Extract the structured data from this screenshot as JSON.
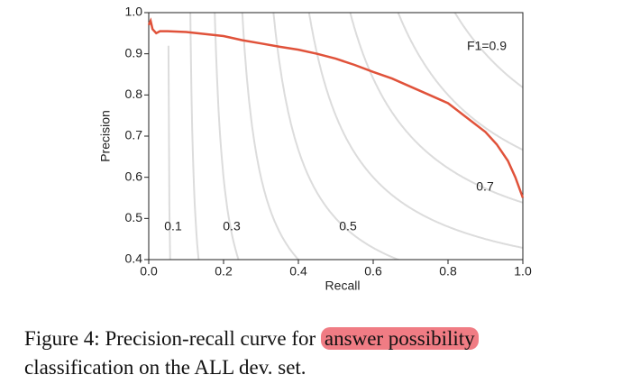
{
  "chart_data": {
    "type": "line",
    "xlabel": "Recall",
    "ylabel": "Precision",
    "xlim": [
      0,
      1
    ],
    "ylim": [
      0.4,
      1
    ],
    "xticks": [
      {
        "value": 0,
        "label": "0.0"
      },
      {
        "value": 0.2,
        "label": "0.2"
      },
      {
        "value": 0.4,
        "label": "0.4"
      },
      {
        "value": 0.6,
        "label": "0.6"
      },
      {
        "value": 0.8,
        "label": "0.8"
      },
      {
        "value": 1,
        "label": "1.0"
      }
    ],
    "yticks": [
      {
        "value": 0.4,
        "label": "0.4"
      },
      {
        "value": 0.5,
        "label": "0.5"
      },
      {
        "value": 0.6,
        "label": "0.6"
      },
      {
        "value": 0.7,
        "label": "0.7"
      },
      {
        "value": 0.8,
        "label": "0.8"
      },
      {
        "value": 0.9,
        "label": "0.9"
      },
      {
        "value": 1,
        "label": "1.0"
      }
    ],
    "iso_f1": [
      0.1,
      0.2,
      0.3,
      0.4,
      0.5,
      0.6,
      0.7,
      0.8,
      0.9
    ],
    "iso_f1_color": "#dcdcdc",
    "iso_f1_labels": [
      {
        "value": 0.1,
        "label": "0.1"
      },
      {
        "value": 0.3,
        "label": "0.3"
      },
      {
        "value": 0.5,
        "label": "0.5"
      },
      {
        "value": 0.7,
        "label": "0.7"
      },
      {
        "value": 0.9,
        "label": "F1=0.9"
      }
    ],
    "series": [
      {
        "color": "#e0523a",
        "x": [
          0,
          0.005,
          0.01,
          0.02,
          0.03,
          0.05,
          0.1,
          0.15,
          0.2,
          0.25,
          0.3,
          0.35,
          0.4,
          0.45,
          0.5,
          0.55,
          0.6,
          0.65,
          0.7,
          0.75,
          0.8,
          0.85,
          0.9,
          0.93,
          0.96,
          0.98,
          1
        ],
        "values": [
          0.97,
          0.98,
          0.96,
          0.95,
          0.955,
          0.955,
          0.953,
          0.948,
          0.943,
          0.933,
          0.925,
          0.917,
          0.91,
          0.9,
          0.888,
          0.873,
          0.856,
          0.84,
          0.82,
          0.8,
          0.78,
          0.745,
          0.71,
          0.68,
          0.64,
          0.6,
          0.55
        ]
      }
    ]
  },
  "caption": {
    "before": "Figure 4: Precision-recall curve for",
    "highlight": "answer possibility",
    "after": "classification on the ALL dev. set."
  }
}
